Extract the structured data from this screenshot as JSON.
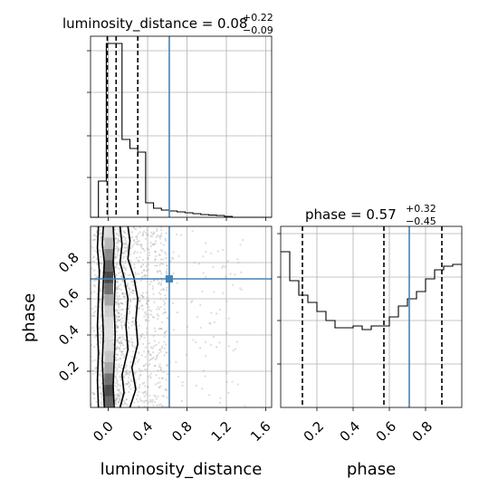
{
  "chart_data": [
    {
      "type": "histogram",
      "param": "luminosity_distance",
      "title": {
        "main": "luminosity_distance = 0.08",
        "sup": "+0.22",
        "sub": "−0.09"
      },
      "xlim": [
        -0.18,
        1.66
      ],
      "ylim": [
        0,
        1.0
      ],
      "bins": [
        -0.18,
        -0.1,
        -0.02,
        0.06,
        0.14,
        0.22,
        0.3,
        0.38,
        0.46,
        0.54,
        0.62,
        0.7,
        0.78,
        0.86,
        0.94,
        1.02,
        1.1,
        1.18,
        1.26,
        1.34,
        1.42,
        1.5,
        1.58,
        1.66
      ],
      "counts": [
        0.0,
        0.2,
        0.96,
        0.96,
        0.43,
        0.38,
        0.36,
        0.08,
        0.05,
        0.04,
        0.035,
        0.03,
        0.025,
        0.02,
        0.015,
        0.012,
        0.01,
        0.005,
        0.0,
        0.0,
        0.0,
        0.0,
        0.0
      ],
      "quantile_lines": [
        -0.01,
        0.08,
        0.3
      ],
      "truth": 0.62,
      "grid": true
    },
    {
      "type": "histogram",
      "param": "phase",
      "title": {
        "main": "phase = 0.57",
        "sup": "+0.32",
        "sub": "−0.45"
      },
      "xlim": [
        0.0,
        1.0
      ],
      "ylim": [
        0,
        1.0
      ],
      "bins": [
        0.0,
        0.05,
        0.1,
        0.15,
        0.2,
        0.25,
        0.3,
        0.35,
        0.4,
        0.45,
        0.5,
        0.55,
        0.6,
        0.65,
        0.7,
        0.75,
        0.8,
        0.85,
        0.9,
        0.95,
        1.0
      ],
      "counts": [
        0.86,
        0.7,
        0.62,
        0.58,
        0.53,
        0.48,
        0.44,
        0.44,
        0.45,
        0.43,
        0.45,
        0.45,
        0.5,
        0.56,
        0.6,
        0.64,
        0.71,
        0.76,
        0.78,
        0.79
      ],
      "quantile_lines": [
        0.12,
        0.57,
        0.89
      ],
      "truth": 0.71,
      "xticks": [
        0.2,
        0.4,
        0.6,
        0.8
      ],
      "xlabel": "phase",
      "grid": true
    },
    {
      "type": "scatter",
      "x_param": "luminosity_distance",
      "y_param": "phase",
      "xlim": [
        -0.18,
        1.66
      ],
      "ylim": [
        0.0,
        1.0
      ],
      "xticks": [
        0.0,
        0.4,
        0.8,
        1.2,
        1.6
      ],
      "yticks": [
        0.2,
        0.4,
        0.6,
        0.8
      ],
      "xlabel": "luminosity_distance",
      "ylabel": "phase",
      "truth": [
        0.62,
        0.71
      ],
      "grid": true
    }
  ],
  "colors": {
    "truth": "#4682b4",
    "points": "#9a9a9a",
    "line": "#000000",
    "grid": "#b0b0b0"
  }
}
